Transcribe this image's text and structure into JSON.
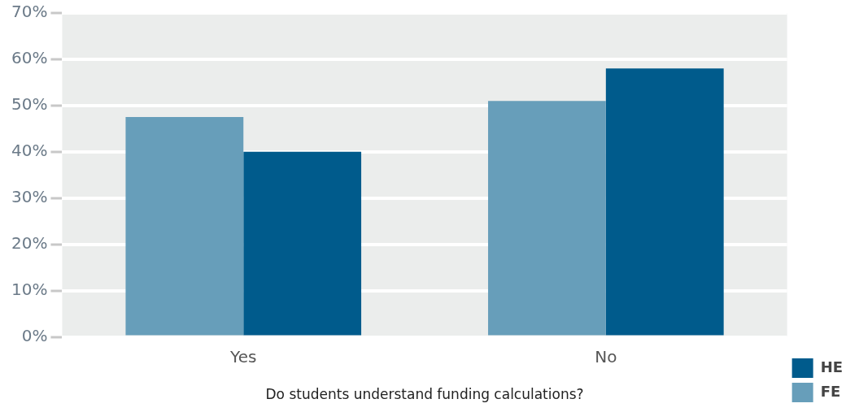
{
  "chart_data": {
    "type": "bar",
    "xlabel": "Do students understand funding calculations?",
    "categories": [
      "Yes",
      "No"
    ],
    "series": [
      {
        "name": "FE",
        "color": "#679eba",
        "values": [
          47.5,
          51
        ]
      },
      {
        "name": "HE",
        "color": "#005b8c",
        "values": [
          40,
          58
        ]
      }
    ],
    "ylim": [
      0,
      70
    ],
    "yticks": [
      {
        "value": 0,
        "label": "0%"
      },
      {
        "value": 10,
        "label": "10%"
      },
      {
        "value": 20,
        "label": "20%"
      },
      {
        "value": 30,
        "label": "30%"
      },
      {
        "value": 40,
        "label": "40%"
      },
      {
        "value": 50,
        "label": "50%"
      },
      {
        "value": 60,
        "label": "60%"
      },
      {
        "value": 70,
        "label": "70%"
      }
    ],
    "grid": "y",
    "legend": "bottom right"
  }
}
